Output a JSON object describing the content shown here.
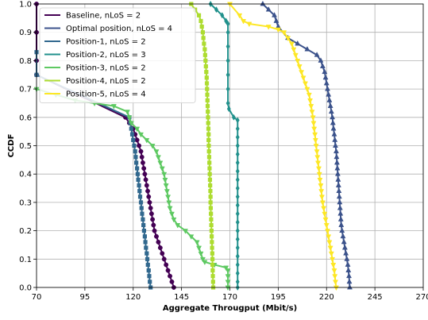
{
  "chart_data": {
    "type": "line",
    "xlabel": "Aggregate Througput (Mbit/s)",
    "ylabel": "CCDF",
    "xlim": [
      70,
      270
    ],
    "ylim": [
      0.0,
      1.0
    ],
    "xticks": [
      70,
      95,
      120,
      145,
      170,
      195,
      220,
      245,
      270
    ],
    "yticks": [
      0.0,
      0.1,
      0.2,
      0.3,
      0.4,
      0.5,
      0.6,
      0.7,
      0.8,
      0.9,
      1.0
    ],
    "xtick_labels": [
      "70",
      "95",
      "120",
      "145",
      "170",
      "195",
      "220",
      "245",
      "270"
    ],
    "ytick_labels": [
      "0.0",
      "0.1",
      "0.2",
      "0.3",
      "0.4",
      "0.5",
      "0.6",
      "0.7",
      "0.8",
      "0.9",
      "1.0"
    ],
    "grid": true,
    "legend_position": "top-left",
    "series": [
      {
        "name": "Baseline, nLoS = 2",
        "color": "#440154",
        "marker": "circle",
        "points": [
          [
            70,
            1.0
          ],
          [
            70,
            0.9
          ],
          [
            70,
            0.8
          ],
          [
            70,
            0.75
          ],
          [
            116,
            0.6
          ],
          [
            118,
            0.58
          ],
          [
            120,
            0.56
          ],
          [
            121,
            0.54
          ],
          [
            122,
            0.52
          ],
          [
            123,
            0.5
          ],
          [
            124,
            0.48
          ],
          [
            124.5,
            0.46
          ],
          [
            125,
            0.44
          ],
          [
            125.5,
            0.42
          ],
          [
            126,
            0.4
          ],
          [
            126.5,
            0.38
          ],
          [
            127,
            0.36
          ],
          [
            127.5,
            0.34
          ],
          [
            128,
            0.32
          ],
          [
            128.5,
            0.3
          ],
          [
            129,
            0.28
          ],
          [
            129.5,
            0.26
          ],
          [
            130,
            0.24
          ],
          [
            130.5,
            0.22
          ],
          [
            131,
            0.2
          ],
          [
            132,
            0.18
          ],
          [
            133,
            0.16
          ],
          [
            134,
            0.14
          ],
          [
            135,
            0.12
          ],
          [
            136,
            0.1
          ],
          [
            137,
            0.08
          ],
          [
            138,
            0.06
          ],
          [
            139,
            0.04
          ],
          [
            140,
            0.02
          ],
          [
            141,
            0.0
          ]
        ]
      },
      {
        "name": "Optimal position, nLoS = 4",
        "color": "#3b528b",
        "marker": "triangle-up",
        "points": [
          [
            187,
            1.0
          ],
          [
            190,
            0.98
          ],
          [
            193,
            0.96
          ],
          [
            194,
            0.94
          ],
          [
            195,
            0.92
          ],
          [
            200,
            0.88
          ],
          [
            205,
            0.86
          ],
          [
            210,
            0.84
          ],
          [
            215,
            0.82
          ],
          [
            217,
            0.8
          ],
          [
            218,
            0.78
          ],
          [
            219,
            0.76
          ],
          [
            219.5,
            0.74
          ],
          [
            220,
            0.72
          ],
          [
            220.5,
            0.7
          ],
          [
            221,
            0.68
          ],
          [
            221.5,
            0.66
          ],
          [
            222,
            0.64
          ],
          [
            222.5,
            0.62
          ],
          [
            223,
            0.6
          ],
          [
            223.3,
            0.58
          ],
          [
            223.6,
            0.56
          ],
          [
            224,
            0.54
          ],
          [
            224.3,
            0.52
          ],
          [
            224.6,
            0.5
          ],
          [
            225,
            0.48
          ],
          [
            225.2,
            0.46
          ],
          [
            225.4,
            0.44
          ],
          [
            225.6,
            0.42
          ],
          [
            225.8,
            0.4
          ],
          [
            226,
            0.38
          ],
          [
            226.2,
            0.36
          ],
          [
            226.4,
            0.34
          ],
          [
            226.6,
            0.32
          ],
          [
            226.8,
            0.3
          ],
          [
            227,
            0.28
          ],
          [
            227.2,
            0.26
          ],
          [
            227.4,
            0.24
          ],
          [
            227.6,
            0.22
          ],
          [
            228,
            0.2
          ],
          [
            228.5,
            0.18
          ],
          [
            229,
            0.16
          ],
          [
            229.5,
            0.14
          ],
          [
            230,
            0.12
          ],
          [
            230.5,
            0.1
          ],
          [
            231,
            0.08
          ],
          [
            231.3,
            0.06
          ],
          [
            231.6,
            0.04
          ],
          [
            231.8,
            0.02
          ],
          [
            232,
            0.0
          ]
        ]
      },
      {
        "name": "Position-1, nLoS = 2",
        "color": "#31688e",
        "marker": "square",
        "points": [
          [
            70,
            0.83
          ],
          [
            70,
            0.75
          ],
          [
            118,
            0.6
          ],
          [
            118.5,
            0.58
          ],
          [
            119,
            0.56
          ],
          [
            119.5,
            0.54
          ],
          [
            120,
            0.52
          ],
          [
            120.5,
            0.5
          ],
          [
            121,
            0.48
          ],
          [
            121.3,
            0.46
          ],
          [
            121.6,
            0.44
          ],
          [
            122,
            0.42
          ],
          [
            122.3,
            0.4
          ],
          [
            122.6,
            0.38
          ],
          [
            123,
            0.36
          ],
          [
            123.3,
            0.34
          ],
          [
            123.6,
            0.32
          ],
          [
            124,
            0.3
          ],
          [
            124.3,
            0.28
          ],
          [
            124.6,
            0.26
          ],
          [
            125,
            0.24
          ],
          [
            125.3,
            0.22
          ],
          [
            125.6,
            0.2
          ],
          [
            126,
            0.18
          ],
          [
            126.3,
            0.16
          ],
          [
            126.6,
            0.14
          ],
          [
            127,
            0.12
          ],
          [
            127.3,
            0.1
          ],
          [
            127.6,
            0.08
          ],
          [
            128,
            0.06
          ],
          [
            128.3,
            0.04
          ],
          [
            128.6,
            0.02
          ],
          [
            129,
            0.0
          ]
        ]
      },
      {
        "name": "Position-2, nLoS = 3",
        "color": "#21918c",
        "marker": "diamond",
        "points": [
          [
            160,
            1.0
          ],
          [
            163,
            0.98
          ],
          [
            166,
            0.96
          ],
          [
            168,
            0.94
          ],
          [
            169,
            0.93
          ],
          [
            169,
            0.9
          ],
          [
            169,
            0.85
          ],
          [
            169,
            0.8
          ],
          [
            169,
            0.75
          ],
          [
            169,
            0.7
          ],
          [
            169,
            0.65
          ],
          [
            169.5,
            0.63
          ],
          [
            172,
            0.6
          ],
          [
            174,
            0.59
          ],
          [
            174,
            0.56
          ],
          [
            174,
            0.53
          ],
          [
            174,
            0.5
          ],
          [
            174,
            0.47
          ],
          [
            174,
            0.44
          ],
          [
            174,
            0.41
          ],
          [
            174,
            0.38
          ],
          [
            174,
            0.35
          ],
          [
            174,
            0.32
          ],
          [
            174,
            0.29
          ],
          [
            174,
            0.26
          ],
          [
            174,
            0.23
          ],
          [
            174,
            0.2
          ],
          [
            174,
            0.17
          ],
          [
            174,
            0.14
          ],
          [
            174,
            0.11
          ],
          [
            174,
            0.08
          ],
          [
            174,
            0.05
          ],
          [
            174,
            0.02
          ],
          [
            174,
            0.0
          ]
        ]
      },
      {
        "name": "Position-3, nLoS = 2",
        "color": "#5ec962",
        "marker": "triangle-down",
        "points": [
          [
            70,
            0.7
          ],
          [
            80,
            0.68
          ],
          [
            90,
            0.66
          ],
          [
            100,
            0.65
          ],
          [
            110,
            0.64
          ],
          [
            117,
            0.62
          ],
          [
            118,
            0.6
          ],
          [
            119,
            0.58
          ],
          [
            122,
            0.56
          ],
          [
            124,
            0.54
          ],
          [
            127,
            0.52
          ],
          [
            130,
            0.5
          ],
          [
            132,
            0.48
          ],
          [
            133,
            0.46
          ],
          [
            134,
            0.44
          ],
          [
            135,
            0.42
          ],
          [
            136,
            0.4
          ],
          [
            136.5,
            0.38
          ],
          [
            137,
            0.36
          ],
          [
            137.5,
            0.34
          ],
          [
            138,
            0.32
          ],
          [
            138.5,
            0.3
          ],
          [
            139,
            0.28
          ],
          [
            140,
            0.26
          ],
          [
            141,
            0.24
          ],
          [
            143,
            0.22
          ],
          [
            147,
            0.2
          ],
          [
            150,
            0.18
          ],
          [
            153,
            0.16
          ],
          [
            154,
            0.14
          ],
          [
            155,
            0.12
          ],
          [
            156,
            0.1
          ],
          [
            157,
            0.09
          ],
          [
            162,
            0.08
          ],
          [
            168,
            0.07
          ],
          [
            169,
            0.06
          ],
          [
            169,
            0.04
          ],
          [
            169,
            0.02
          ],
          [
            169,
            0.0
          ]
        ]
      },
      {
        "name": "Position-4, nLoS = 2",
        "color": "#addc30",
        "marker": "square",
        "points": [
          [
            150,
            1.0
          ],
          [
            152,
            0.98
          ],
          [
            154,
            0.96
          ],
          [
            155,
            0.94
          ],
          [
            155.5,
            0.92
          ],
          [
            156,
            0.9
          ],
          [
            156.3,
            0.88
          ],
          [
            156.6,
            0.86
          ],
          [
            157,
            0.84
          ],
          [
            157.2,
            0.82
          ],
          [
            157.4,
            0.8
          ],
          [
            157.6,
            0.78
          ],
          [
            157.8,
            0.76
          ],
          [
            158,
            0.74
          ],
          [
            158.1,
            0.72
          ],
          [
            158.2,
            0.7
          ],
          [
            158.3,
            0.68
          ],
          [
            158.4,
            0.66
          ],
          [
            158.5,
            0.64
          ],
          [
            158.6,
            0.62
          ],
          [
            158.7,
            0.6
          ],
          [
            158.8,
            0.58
          ],
          [
            158.9,
            0.56
          ],
          [
            159,
            0.54
          ],
          [
            159,
            0.52
          ],
          [
            159.1,
            0.5
          ],
          [
            159.2,
            0.48
          ],
          [
            159.3,
            0.46
          ],
          [
            159.4,
            0.44
          ],
          [
            159.5,
            0.42
          ],
          [
            159.6,
            0.4
          ],
          [
            159.7,
            0.38
          ],
          [
            159.8,
            0.36
          ],
          [
            159.9,
            0.34
          ],
          [
            160,
            0.32
          ],
          [
            160,
            0.3
          ],
          [
            160.1,
            0.28
          ],
          [
            160.2,
            0.26
          ],
          [
            160.3,
            0.24
          ],
          [
            160.4,
            0.22
          ],
          [
            160.5,
            0.2
          ],
          [
            160.6,
            0.18
          ],
          [
            160.7,
            0.16
          ],
          [
            160.8,
            0.14
          ],
          [
            160.9,
            0.12
          ],
          [
            161,
            0.1
          ],
          [
            161,
            0.08
          ],
          [
            161.1,
            0.06
          ],
          [
            161.2,
            0.04
          ],
          [
            161.3,
            0.02
          ],
          [
            161.4,
            0.0
          ]
        ]
      },
      {
        "name": "Position-5, nLoS = 4",
        "color": "#fde725",
        "marker": "triangle-down",
        "points": [
          [
            170,
            1.0
          ],
          [
            175,
            0.96
          ],
          [
            177,
            0.94
          ],
          [
            180,
            0.93
          ],
          [
            190,
            0.92
          ],
          [
            195,
            0.91
          ],
          [
            198,
            0.9
          ],
          [
            200,
            0.88
          ],
          [
            202,
            0.86
          ],
          [
            203,
            0.84
          ],
          [
            204,
            0.82
          ],
          [
            205,
            0.8
          ],
          [
            206,
            0.78
          ],
          [
            207,
            0.76
          ],
          [
            208,
            0.74
          ],
          [
            209,
            0.72
          ],
          [
            210,
            0.7
          ],
          [
            211,
            0.68
          ],
          [
            211.5,
            0.66
          ],
          [
            212,
            0.64
          ],
          [
            212.5,
            0.62
          ],
          [
            213,
            0.6
          ],
          [
            213.3,
            0.58
          ],
          [
            213.6,
            0.56
          ],
          [
            214,
            0.54
          ],
          [
            214.3,
            0.52
          ],
          [
            214.6,
            0.5
          ],
          [
            215,
            0.48
          ],
          [
            215.3,
            0.46
          ],
          [
            215.6,
            0.44
          ],
          [
            216,
            0.42
          ],
          [
            216.3,
            0.4
          ],
          [
            216.6,
            0.38
          ],
          [
            217,
            0.36
          ],
          [
            217.3,
            0.34
          ],
          [
            217.6,
            0.32
          ],
          [
            218,
            0.3
          ],
          [
            218.5,
            0.28
          ],
          [
            219,
            0.26
          ],
          [
            219.5,
            0.24
          ],
          [
            220,
            0.22
          ],
          [
            220.5,
            0.2
          ],
          [
            221,
            0.18
          ],
          [
            221.5,
            0.16
          ],
          [
            222,
            0.14
          ],
          [
            222.5,
            0.12
          ],
          [
            223,
            0.1
          ],
          [
            223.5,
            0.08
          ],
          [
            224,
            0.06
          ],
          [
            224.3,
            0.04
          ],
          [
            224.6,
            0.02
          ],
          [
            225,
            0.0
          ]
        ]
      }
    ]
  }
}
